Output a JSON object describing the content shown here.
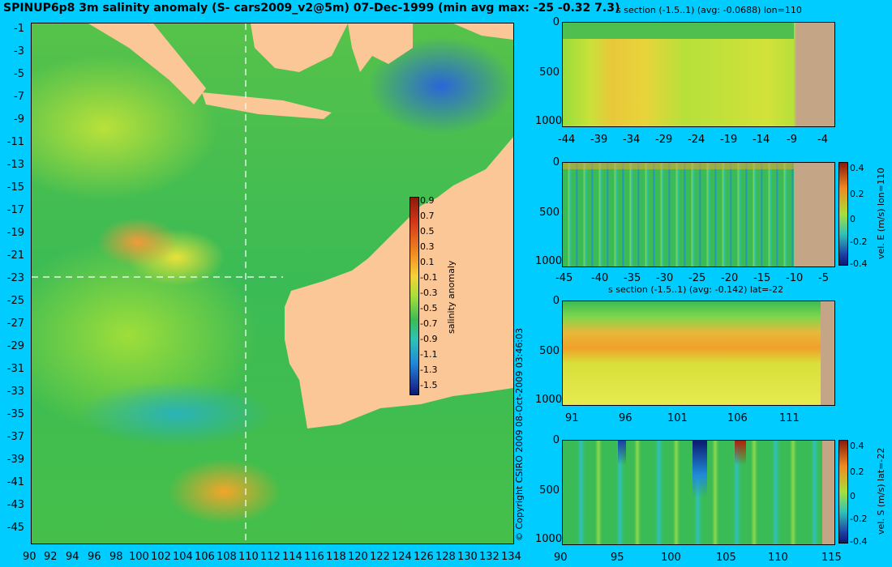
{
  "map": {
    "title": "SPINUP6p8 3m salinity anomaly (S- cars2009_v2@5m) 07-Dec-1999 (min avg max: -25 -0.32 7.3)",
    "lat_ticks": [
      "-1",
      "-3",
      "-5",
      "-7",
      "-9",
      "-11",
      "-13",
      "-15",
      "-17",
      "-19",
      "-21",
      "-23",
      "-25",
      "-27",
      "-29",
      "-31",
      "-33",
      "-35",
      "-37",
      "-39",
      "-41",
      "-43",
      "-45"
    ],
    "lon_ticks": [
      "90",
      "92",
      "94",
      "96",
      "98",
      "100",
      "102",
      "104",
      "106",
      "108",
      "110",
      "112",
      "114",
      "116",
      "118",
      "120",
      "122",
      "124",
      "126",
      "128",
      "130",
      "132",
      "134"
    ],
    "colorbar": {
      "label": "salinity anomaly",
      "ticks": [
        "0.9",
        "0.7",
        "0.5",
        "0.3",
        "0.1",
        "-0.1",
        "-0.3",
        "-0.5",
        "-0.7",
        "-0.9",
        "-1.1",
        "-1.3",
        "-1.5"
      ]
    },
    "copyright": "© Copyright CSIRO 2009   08-Oct-2009 03:46:03"
  },
  "panels": [
    {
      "title": "s section (-1.5..1) (avg: -0.0688) lon=110",
      "y_ticks": [
        "0",
        "500",
        "1000"
      ],
      "x_ticks": [
        "-44",
        "-39",
        "-34",
        "-29",
        "-24",
        "-19",
        "-14",
        "-9",
        "-4"
      ],
      "colorbar_label": "",
      "colorbar_ticks": []
    },
    {
      "title": "",
      "y_ticks": [
        "0",
        "500",
        "1000"
      ],
      "x_ticks": [
        "-45",
        "-40",
        "-35",
        "-30",
        "-25",
        "-20",
        "-15",
        "-10",
        "-5"
      ],
      "colorbar_label": "vel. E (m/s) lon=110",
      "colorbar_ticks": [
        "0.4",
        "0.2",
        "0",
        "-0.2",
        "-0.4"
      ]
    },
    {
      "title": "s section (-1.5..1) (avg: -0.142) lat=-22",
      "y_ticks": [
        "0",
        "500",
        "1000"
      ],
      "x_ticks": [
        "91",
        "96",
        "101",
        "106",
        "111"
      ],
      "colorbar_label": "",
      "colorbar_ticks": []
    },
    {
      "title": "",
      "y_ticks": [
        "0",
        "500",
        "1000"
      ],
      "x_ticks": [
        "90",
        "95",
        "100",
        "105",
        "110",
        "115"
      ],
      "colorbar_label": "vel. S (m/s) lat=-22",
      "colorbar_ticks": [
        "0.4",
        "0.2",
        "0",
        "-0.2",
        "-0.4"
      ]
    }
  ],
  "colors": {
    "background": "#00ccff",
    "land": "#fbc796",
    "ocean_mean": "#39c04a"
  }
}
